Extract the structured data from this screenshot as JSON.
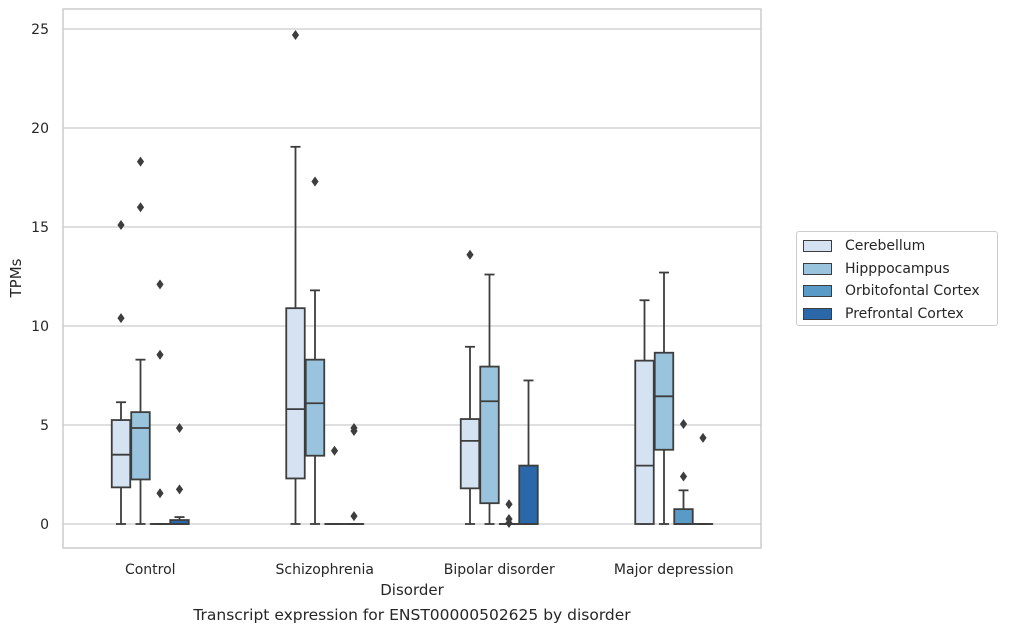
{
  "chart_data": {
    "type": "box",
    "title": "",
    "caption": "Transcript expression for ENST00000502625 by disorder",
    "xlabel": "Disorder",
    "ylabel": "TPMs",
    "ylim": [
      -1.2,
      26
    ],
    "yticks": [
      0,
      5,
      10,
      15,
      20,
      25
    ],
    "grid": "horizontal",
    "legend_position": "right",
    "categories": [
      "Control",
      "Schizophrenia",
      "Bipolar disorder",
      "Major depression"
    ],
    "series": [
      {
        "name": "Cerebellum",
        "color": "#d4e2f2",
        "boxes": [
          {
            "whisker_low": 0,
            "q1": 1.85,
            "median": 3.5,
            "q3": 5.25,
            "whisker_high": 6.15,
            "outliers": [
              10.4,
              15.1
            ]
          },
          {
            "whisker_low": 0,
            "q1": 2.3,
            "median": 5.8,
            "q3": 10.9,
            "whisker_high": 19.05,
            "outliers": [
              24.7
            ]
          },
          {
            "whisker_low": 0,
            "q1": 1.8,
            "median": 4.2,
            "q3": 5.3,
            "whisker_high": 8.95,
            "outliers": [
              13.6
            ]
          },
          {
            "whisker_low": 0,
            "q1": 0,
            "median": 2.95,
            "q3": 8.25,
            "whisker_high": 11.3,
            "outliers": []
          }
        ]
      },
      {
        "name": "Hipppocampus",
        "color": "#9ac4dd",
        "boxes": [
          {
            "whisker_low": 0,
            "q1": 2.25,
            "median": 4.85,
            "q3": 5.65,
            "whisker_high": 8.3,
            "outliers": [
              16.0,
              18.3
            ]
          },
          {
            "whisker_low": 0,
            "q1": 3.45,
            "median": 6.1,
            "q3": 8.3,
            "whisker_high": 11.8,
            "outliers": [
              17.3
            ]
          },
          {
            "whisker_low": 0,
            "q1": 1.05,
            "median": 6.2,
            "q3": 7.95,
            "whisker_high": 12.6,
            "outliers": []
          },
          {
            "whisker_low": 0,
            "q1": 3.75,
            "median": 6.45,
            "q3": 8.65,
            "whisker_high": 12.7,
            "outliers": []
          }
        ]
      },
      {
        "name": "Orbitofontal Cortex",
        "color": "#5a9ac7",
        "boxes": [
          {
            "whisker_low": 0,
            "q1": 0,
            "median": 0,
            "q3": 0,
            "whisker_high": 0,
            "outliers": [
              1.55,
              8.55,
              12.1
            ]
          },
          {
            "whisker_low": 0,
            "q1": 0,
            "median": 0,
            "q3": 0,
            "whisker_high": 0,
            "outliers": [
              3.7
            ]
          },
          {
            "whisker_low": 0,
            "q1": 0,
            "median": 0,
            "q3": 0,
            "whisker_high": 0,
            "outliers": [
              0.05,
              0.25,
              1.0
            ]
          },
          {
            "whisker_low": 0,
            "q1": 0,
            "median": 0,
            "q3": 0.75,
            "whisker_high": 1.7,
            "outliers": [
              2.4,
              5.05
            ]
          }
        ]
      },
      {
        "name": "Prefrontal Cortex",
        "color": "#2a68a9",
        "boxes": [
          {
            "whisker_low": 0,
            "q1": 0,
            "median": 0,
            "q3": 0.2,
            "whisker_high": 0.35,
            "outliers": [
              1.75,
              4.85
            ]
          },
          {
            "whisker_low": 0,
            "q1": 0,
            "median": 0,
            "q3": 0,
            "whisker_high": 0,
            "outliers": [
              0.4,
              4.7,
              4.85
            ]
          },
          {
            "whisker_low": 0,
            "q1": 0,
            "median": 0,
            "q3": 2.95,
            "whisker_high": 7.25,
            "outliers": []
          },
          {
            "whisker_low": 0,
            "q1": 0,
            "median": 0,
            "q3": 0,
            "whisker_high": 0,
            "outliers": [
              4.35
            ]
          }
        ]
      }
    ]
  }
}
